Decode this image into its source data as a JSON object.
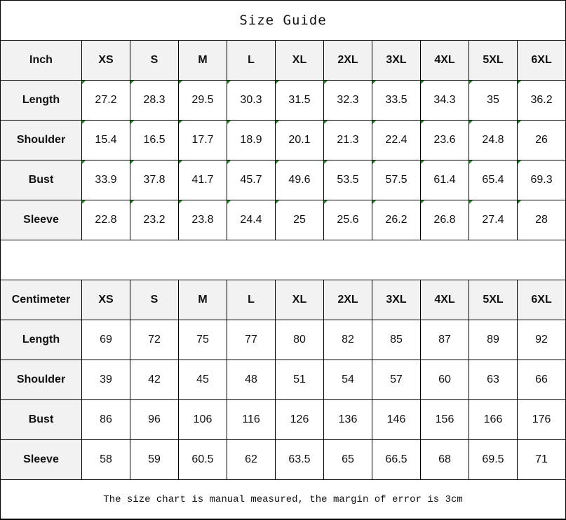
{
  "title": "Size Guide",
  "inch": {
    "unit": "Inch",
    "sizes": [
      "XS",
      "S",
      "M",
      "L",
      "XL",
      "2XL",
      "3XL",
      "4XL",
      "5XL",
      "6XL"
    ],
    "rows": [
      {
        "label": "Length",
        "values": [
          "27.2",
          "28.3",
          "29.5",
          "30.3",
          "31.5",
          "32.3",
          "33.5",
          "34.3",
          "35",
          "36.2"
        ]
      },
      {
        "label": "Shoulder",
        "values": [
          "15.4",
          "16.5",
          "17.7",
          "18.9",
          "20.1",
          "21.3",
          "22.4",
          "23.6",
          "24.8",
          "26"
        ]
      },
      {
        "label": "Bust",
        "values": [
          "33.9",
          "37.8",
          "41.7",
          "45.7",
          "49.6",
          "53.5",
          "57.5",
          "61.4",
          "65.4",
          "69.3"
        ]
      },
      {
        "label": "Sleeve",
        "values": [
          "22.8",
          "23.2",
          "23.8",
          "24.4",
          "25",
          "25.6",
          "26.2",
          "26.8",
          "27.4",
          "28"
        ]
      }
    ]
  },
  "cm": {
    "unit": "Centimeter",
    "sizes": [
      "XS",
      "S",
      "M",
      "L",
      "XL",
      "2XL",
      "3XL",
      "4XL",
      "5XL",
      "6XL"
    ],
    "rows": [
      {
        "label": "Length",
        "values": [
          "69",
          "72",
          "75",
          "77",
          "80",
          "82",
          "85",
          "87",
          "89",
          "92"
        ]
      },
      {
        "label": "Shoulder",
        "values": [
          "39",
          "42",
          "45",
          "48",
          "51",
          "54",
          "57",
          "60",
          "63",
          "66"
        ]
      },
      {
        "label": "Bust",
        "values": [
          "86",
          "96",
          "106",
          "116",
          "126",
          "136",
          "146",
          "156",
          "166",
          "176"
        ]
      },
      {
        "label": "Sleeve",
        "values": [
          "58",
          "59",
          "60.5",
          "62",
          "63.5",
          "65",
          "66.5",
          "68",
          "69.5",
          "71"
        ]
      }
    ]
  },
  "footer": "The size chart is manual measured, the margin of error is 3cm"
}
